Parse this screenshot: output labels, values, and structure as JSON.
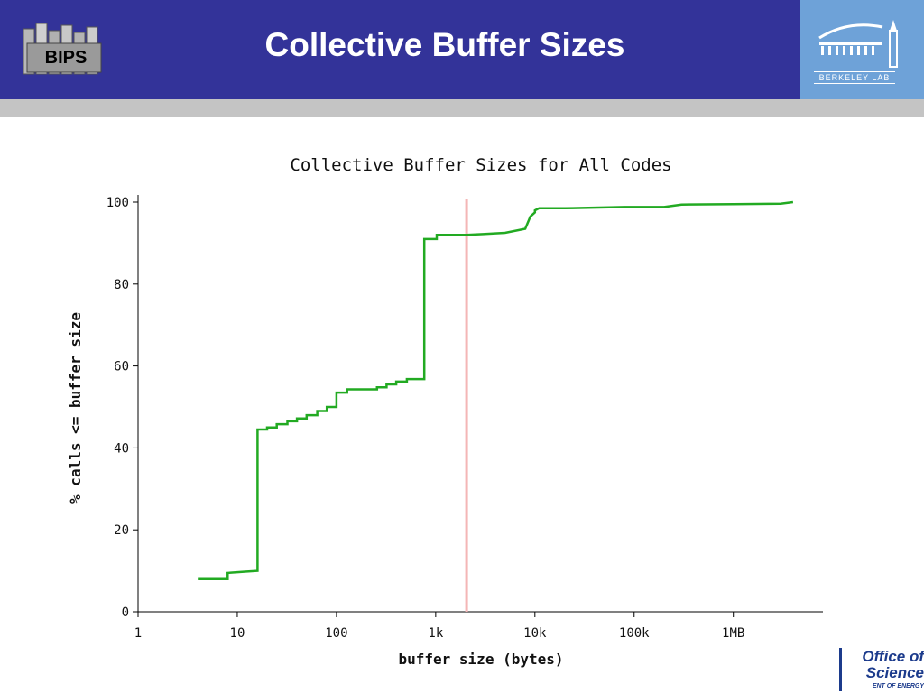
{
  "slide": {
    "title": "Collective Buffer Sizes",
    "header_color": "#333399",
    "logo_left": {
      "text": "BIPS",
      "icon": "bips-building-logo-icon"
    },
    "logo_right": {
      "text": "BERKELEY LAB",
      "icon": "berkeley-lab-logo-icon"
    },
    "footer_logo": {
      "line1": "Office of",
      "line2": "Science",
      "line3": "ENT OF ENERGY",
      "icon": "office-of-science-logo-icon"
    }
  },
  "chart_data": {
    "type": "line",
    "title": "Collective Buffer Sizes for All Codes",
    "xlabel": "buffer size (bytes)",
    "ylabel": "% calls <= buffer size",
    "x_scale": "log",
    "xlim": [
      1,
      8000000
    ],
    "ylim": [
      0,
      100
    ],
    "x_ticks": [
      {
        "value": 1,
        "label": "1"
      },
      {
        "value": 10,
        "label": "10"
      },
      {
        "value": 100,
        "label": "100"
      },
      {
        "value": 1000,
        "label": "1k"
      },
      {
        "value": 10000,
        "label": "10k"
      },
      {
        "value": 100000,
        "label": "100k"
      },
      {
        "value": 1000000,
        "label": "1MB"
      }
    ],
    "y_ticks": [
      0,
      20,
      40,
      60,
      80,
      100
    ],
    "grid": false,
    "series": [
      {
        "color": "#22aa22",
        "x": [
          4,
          8,
          8,
          12,
          16,
          16,
          20,
          20,
          25,
          25,
          32,
          32,
          40,
          40,
          50,
          50,
          64,
          64,
          80,
          80,
          100,
          100,
          128,
          128,
          256,
          256,
          320,
          320,
          400,
          400,
          512,
          512,
          768,
          768,
          1024,
          1024,
          2048,
          3000,
          5000,
          8000,
          9000,
          10000,
          10000,
          11000,
          20000,
          80000,
          200000,
          300000,
          1000000,
          3000000,
          4000000
        ],
        "y": [
          8,
          8,
          9.5,
          9.8,
          10,
          44.5,
          44.5,
          45,
          45,
          45.8,
          45.8,
          46.5,
          46.5,
          47.2,
          47.2,
          48,
          48,
          49,
          49,
          50,
          50,
          53.5,
          53.5,
          54.3,
          54.3,
          54.8,
          54.8,
          55.5,
          55.5,
          56.2,
          56.2,
          56.8,
          56.8,
          91,
          91,
          92,
          92,
          92.2,
          92.5,
          93.5,
          96.5,
          97.5,
          98,
          98.5,
          98.5,
          98.8,
          98.8,
          99.4,
          99.5,
          99.6,
          100
        ]
      }
    ],
    "annotations": [
      {
        "type": "vertical-line",
        "x": 2048,
        "color": "#f4b6b6"
      }
    ]
  }
}
